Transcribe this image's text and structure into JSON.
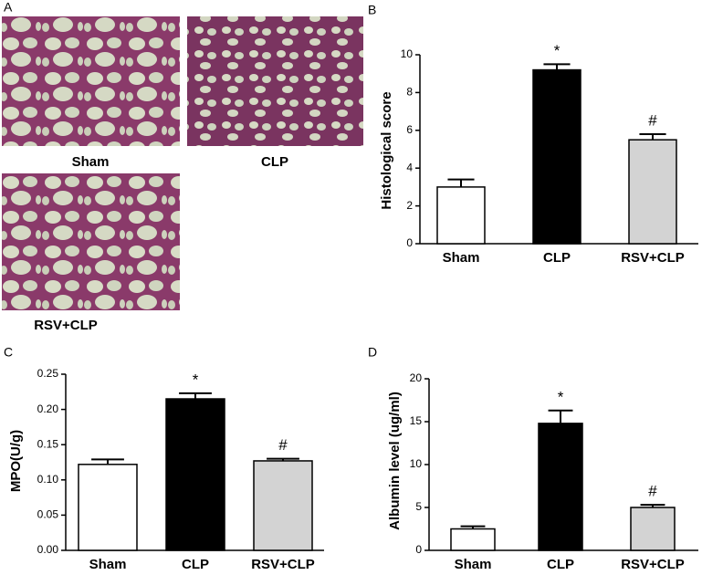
{
  "panel_a": {
    "label": "A",
    "captions": [
      "Sham",
      "CLP",
      "RSV+CLP"
    ]
  },
  "chart_data": [
    {
      "type": "bar",
      "label": "B",
      "ylabel": "Histological score",
      "categories": [
        "Sham",
        "CLP",
        "RSV+CLP"
      ],
      "values": [
        3.0,
        9.2,
        5.5
      ],
      "errors": [
        0.4,
        0.3,
        0.3
      ],
      "colors": [
        "#ffffff",
        "#000000",
        "#d3d3d3"
      ],
      "annotations": [
        null,
        "*",
        "#"
      ],
      "ylim": [
        0,
        10
      ],
      "yticks": [
        0,
        2,
        4,
        6,
        8,
        10
      ]
    },
    {
      "type": "bar",
      "label": "C",
      "ylabel": "MPO(U/g)",
      "categories": [
        "Sham",
        "CLP",
        "RSV+CLP"
      ],
      "values": [
        0.122,
        0.215,
        0.127
      ],
      "errors": [
        0.007,
        0.008,
        0.003
      ],
      "colors": [
        "#ffffff",
        "#000000",
        "#d3d3d3"
      ],
      "annotations": [
        null,
        "*",
        "#"
      ],
      "ylim": [
        0,
        0.25
      ],
      "yticks": [
        {
          "value": 0,
          "label": "0.00"
        },
        0.05,
        {
          "value": 0.1,
          "label": "0.10"
        },
        0.15,
        {
          "value": 0.2,
          "label": "0.20"
        },
        0.25
      ]
    },
    {
      "type": "bar",
      "label": "D",
      "ylabel": "Albumin level (ug/ml)",
      "categories": [
        "Sham",
        "CLP",
        "RSV+CLP"
      ],
      "values": [
        2.5,
        14.8,
        5.0
      ],
      "errors": [
        0.3,
        1.5,
        0.3
      ],
      "colors": [
        "#ffffff",
        "#000000",
        "#d3d3d3"
      ],
      "annotations": [
        null,
        "*",
        "#"
      ],
      "ylim": [
        0,
        20
      ],
      "yticks": [
        0,
        5,
        10,
        15,
        20
      ]
    }
  ]
}
